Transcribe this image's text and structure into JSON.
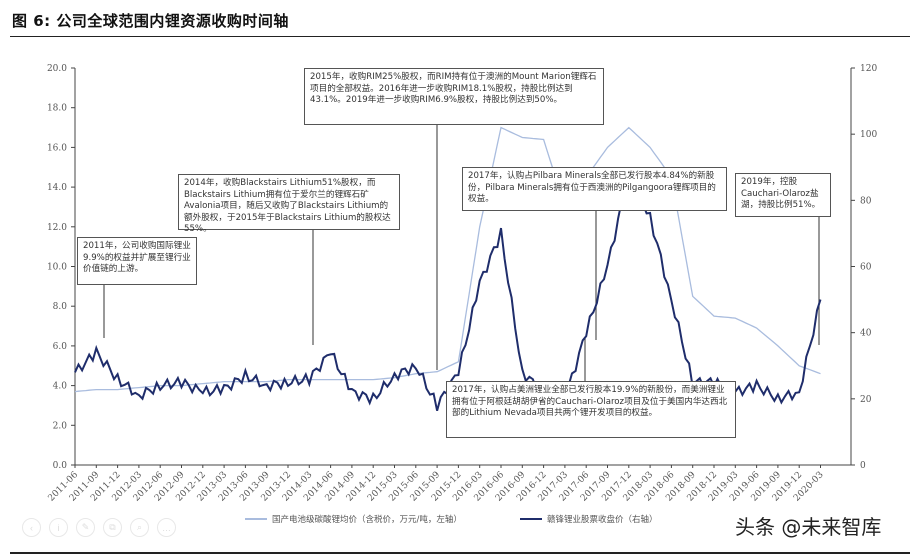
{
  "title": "图 6:  公司全球范围内锂资源收购时间轴",
  "watermark": "头条 @未来智库",
  "toolbar": [
    {
      "icon": "back-icon",
      "glyph": "‹"
    },
    {
      "icon": "info-icon",
      "glyph": "i"
    },
    {
      "icon": "edit-icon",
      "glyph": "✎"
    },
    {
      "icon": "crop-icon",
      "glyph": "⧉"
    },
    {
      "icon": "search-icon",
      "glyph": "⌕"
    },
    {
      "icon": "more-icon",
      "glyph": "…"
    }
  ],
  "annotations": [
    {
      "id": "a2011",
      "text": "2011年，公司收购国际锂业9.9%的权益并扩展至锂行业价值链的上游。"
    },
    {
      "id": "a2014",
      "text": "2014年，收购Blackstairs Lithium51%股权，而Blackstairs Lithium拥有位于爱尔兰的锂辉石矿 Avalonia项目，随后又收购了Blackstairs Lithium的额外股权，于2015年于Blackstairs Lithium的股权达55%。"
    },
    {
      "id": "a2015",
      "text": "2015年，收购RIM25%股权，而RIM持有位于澳洲的Mount Marion锂辉石项目的全部权益。2016年进一步收购RIM18.1%股权，持股比例达到43.1%。2019年进一步收购RIM6.9%股权，持股比例达到50%。"
    },
    {
      "id": "a2017a",
      "text": "2017年，认购占Pilbara Minerals全部已发行股本4.84%的新股份，Pilbara Minerals拥有位于西澳洲的Pilgangoora锂辉项目的权益。"
    },
    {
      "id": "a2017b",
      "text": "2017年，认购占美洲锂业全部已发行股本19.9%的新股份，而美洲锂业拥有位于阿根廷胡胡伊省的Cauchari-Olaroz项目及位于美国内华达西北部的Lithium Nevada项目共两个锂开发项目的权益。"
    },
    {
      "id": "a2019",
      "text": "2019年，控股Cauchari-Olaroz盐湖，持股比例51%。"
    }
  ],
  "chart_data": {
    "type": "line",
    "title": "图 6: 公司全球范围内锂资源收购时间轴",
    "xlabel": "",
    "ylabel_left": "国产电池级碳酸锂均价（含税价，万元/吨）",
    "ylabel_right": "赣锋锂业股票收盘价（元）",
    "ylim_left": [
      0,
      20
    ],
    "ylim_right": [
      0,
      120
    ],
    "yticks_left": [
      "0.0",
      "2.0",
      "4.0",
      "6.0",
      "8.0",
      "10.0",
      "12.0",
      "14.0",
      "16.0",
      "18.0",
      "20.0"
    ],
    "yticks_right": [
      "0",
      "20",
      "40",
      "60",
      "80",
      "100",
      "120"
    ],
    "grid": false,
    "legend_position": "bottom",
    "categories": [
      "2011-06",
      "2011-09",
      "2011-12",
      "2012-03",
      "2012-06",
      "2012-09",
      "2012-12",
      "2013-03",
      "2013-06",
      "2013-09",
      "2013-12",
      "2014-03",
      "2014-06",
      "2014-09",
      "2014-12",
      "2015-03",
      "2015-06",
      "2015-09",
      "2015-12",
      "2016-03",
      "2016-06",
      "2016-09",
      "2016-12",
      "2017-03",
      "2017-06",
      "2017-09",
      "2017-12",
      "2018-03",
      "2018-06",
      "2018-09",
      "2018-12",
      "2019-03",
      "2019-06",
      "2019-09",
      "2019-12",
      "2020-03"
    ],
    "series": [
      {
        "name": "国产电池级碳酸锂均价（含税价，万元/吨，左轴）",
        "axis": "left",
        "color": "#9fb3d6",
        "values": [
          3.7,
          3.8,
          3.8,
          3.9,
          4.0,
          4.0,
          4.1,
          4.2,
          4.2,
          4.2,
          4.3,
          4.3,
          4.3,
          4.3,
          4.3,
          4.4,
          4.6,
          4.7,
          5.2,
          12.0,
          17.0,
          16.5,
          16.4,
          13.0,
          14.5,
          16.0,
          17.0,
          16.0,
          14.5,
          8.5,
          7.5,
          7.4,
          6.9,
          6.0,
          5.0,
          4.6
        ]
      },
      {
        "name": "赣锋锂业股票收盘价（右轴）",
        "axis": "right",
        "color": "#1f2d6b",
        "values": [
          28,
          34,
          26,
          21,
          24,
          25,
          22,
          23,
          27,
          24,
          25,
          26,
          34,
          22,
          20,
          27,
          30,
          18,
          28,
          55,
          70,
          28,
          22,
          20,
          40,
          60,
          88,
          75,
          50,
          25,
          25,
          22,
          24,
          20,
          22,
          50
        ]
      }
    ]
  },
  "legend": [
    {
      "label": "国产电池级碳酸锂均价（含税价，万元/吨，左轴）",
      "color": "#9fb3d6"
    },
    {
      "label": "赣锋锂业股票收盘价（右轴）",
      "color": "#1f2d6b"
    }
  ]
}
